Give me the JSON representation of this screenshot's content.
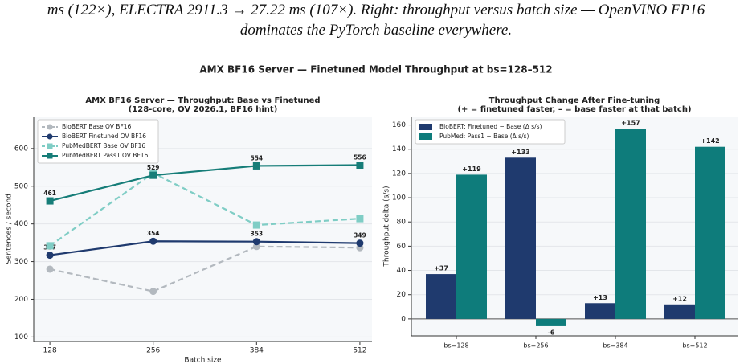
{
  "caption": [
    "ms (122×), ELECTRA 2911.3 → 27.22 ms (107×). Right: throughput versus batch size — OpenVINO FP16",
    "dominates the PyTorch baseline everywhere."
  ],
  "figure_title": "AMX BF16 Server — Finetuned Model Throughput at bs=128–512",
  "chart_data": [
    {
      "type": "line",
      "title": [
        "AMX BF16 Server — Throughput: Base vs Finetuned",
        "(128-core, OV 2026.1, BF16 hint)"
      ],
      "x_label": "Batch size",
      "y_label": "Sentences / second",
      "x": [
        128,
        256,
        384,
        512
      ],
      "xlim": [
        108,
        527
      ],
      "xticks": [
        128,
        256,
        384,
        512
      ],
      "ylim": [
        88,
        685
      ],
      "yticks": [
        100,
        200,
        300,
        400,
        500,
        600
      ],
      "grid": true,
      "legend": "upper left",
      "series": [
        {
          "name": "BioBERT Base OV BF16",
          "color": "#b3b9bf",
          "dashed": true,
          "marker": "circle",
          "data_labels": false,
          "values": [
            280,
            221,
            340,
            337
          ]
        },
        {
          "name": "BioBERT Finetuned OV BF16",
          "color": "#1f3a6e",
          "dashed": false,
          "marker": "circle",
          "data_labels": true,
          "values": [
            317,
            354,
            353,
            349
          ]
        },
        {
          "name": "PubMedBERT Base OV BF16",
          "color": "#7fcdc5",
          "dashed": true,
          "marker": "square",
          "data_labels": false,
          "values": [
            342,
            535,
            397,
            414
          ]
        },
        {
          "name": "PubMedBERT Pass1 OV BF16",
          "color": "#167d78",
          "dashed": false,
          "marker": "square",
          "data_labels": true,
          "values": [
            461,
            529,
            554,
            556
          ]
        }
      ]
    },
    {
      "type": "bar",
      "title": [
        "Throughput Change After Fine-tuning",
        "(+ = finetuned faster, – = base faster at that batch)"
      ],
      "y_label": "Throughput delta (s/s)",
      "categories": [
        "bs=128",
        "bs=256",
        "bs=384",
        "bs=512"
      ],
      "ylim": [
        -14,
        167
      ],
      "yticks": [
        0,
        20,
        40,
        60,
        80,
        100,
        120,
        140,
        160
      ],
      "grid": true,
      "legend": "upper left",
      "series": [
        {
          "name": "BioBERT: Finetuned − Base (Δ s/s)",
          "color": "#1f3a6e",
          "values": [
            37,
            133,
            13,
            12
          ],
          "value_labels": [
            "+37",
            "+133",
            "+13",
            "+12"
          ]
        },
        {
          "name": "PubMed: Pass1 − Base (Δ s/s)",
          "color": "#0e7c7b",
          "values": [
            119,
            -6,
            157,
            142
          ],
          "value_labels": [
            "+119",
            "-6",
            "+157",
            "+142"
          ]
        }
      ]
    }
  ]
}
